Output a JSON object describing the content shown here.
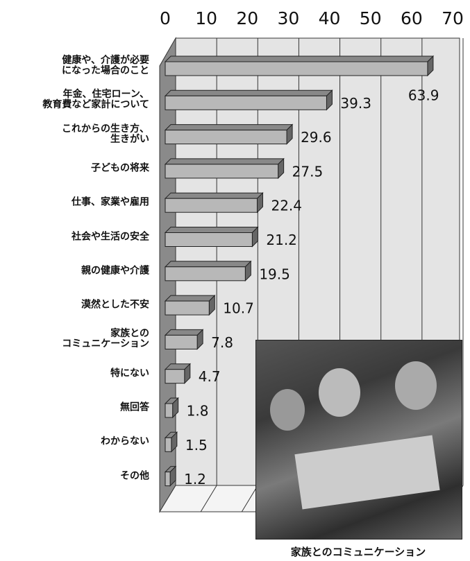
{
  "chart_data": {
    "type": "bar",
    "orientation": "horizontal",
    "categories": [
      "健康や、介護が必要\nになった場合のこと",
      "年金、住宅ローン、\n教育費など家計について",
      "これからの生き方、\n生きがい",
      "子どもの将来",
      "仕事、家業や雇用",
      "社会や生活の安全",
      "親の健康や介護",
      "漠然とした不安",
      "家族との\nコミュニケーション",
      "特にない",
      "無回答",
      "わからない",
      "その他"
    ],
    "values": [
      63.9,
      39.3,
      29.6,
      27.5,
      22.4,
      21.2,
      19.5,
      10.7,
      7.8,
      4.7,
      1.8,
      1.5,
      1.2
    ],
    "color": "#b8b8b8",
    "xlim": [
      0,
      70
    ],
    "xticks": [
      0,
      10,
      20,
      30,
      40,
      50,
      60,
      70
    ],
    "grid": true,
    "caption": "家族とのコミュニケーション"
  }
}
